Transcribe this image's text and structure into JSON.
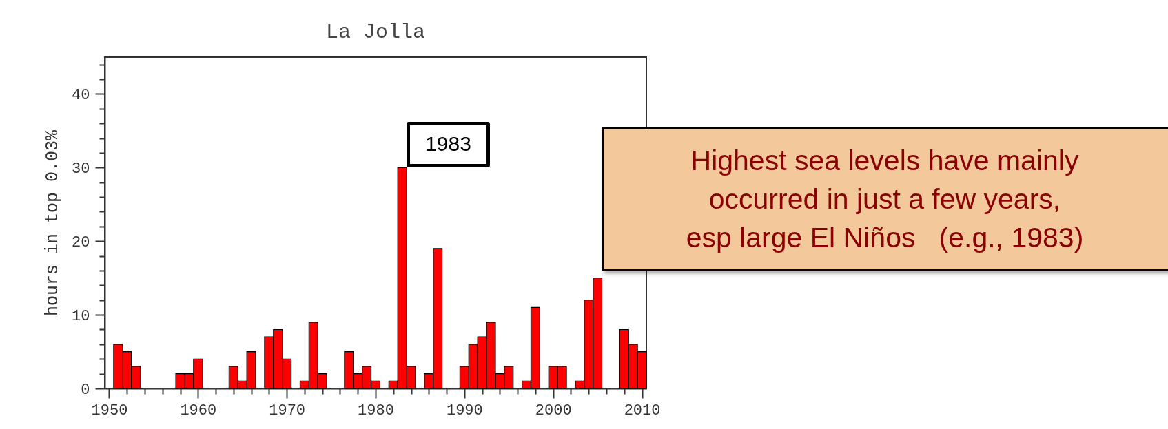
{
  "chart_data": {
    "type": "bar",
    "title": "La Jolla",
    "ylabel": "hours in top 0.03%",
    "x": [
      1951,
      1952,
      1953,
      1958,
      1959,
      1960,
      1964,
      1965,
      1966,
      1968,
      1969,
      1970,
      1972,
      1973,
      1974,
      1977,
      1978,
      1979,
      1980,
      1982,
      1983,
      1984,
      1986,
      1987,
      1990,
      1991,
      1992,
      1993,
      1994,
      1995,
      1997,
      1998,
      2000,
      2001,
      2003,
      2004,
      2005,
      2008,
      2009,
      2010
    ],
    "values": [
      6,
      5,
      3,
      2,
      2,
      4,
      3,
      1,
      5,
      7,
      8,
      4,
      1,
      9,
      2,
      5,
      2,
      3,
      1,
      1,
      30,
      3,
      2,
      19,
      3,
      6,
      7,
      9,
      2,
      3,
      1,
      11,
      3,
      3,
      1,
      12,
      15,
      8,
      6,
      5
    ],
    "color": "#ff0000",
    "xlim": [
      1949.5,
      2010.5
    ],
    "xticks": [
      1950,
      {
        "value": 1952,
        "label": null
      },
      {
        "value": 1954,
        "label": null
      },
      {
        "value": 1956,
        "label": null
      },
      {
        "value": 1958,
        "label": null
      },
      1960,
      {
        "value": 1962,
        "label": null
      },
      {
        "value": 1964,
        "label": null
      },
      {
        "value": 1966,
        "label": null
      },
      {
        "value": 1968,
        "label": null
      },
      1970,
      {
        "value": 1972,
        "label": null
      },
      {
        "value": 1974,
        "label": null
      },
      {
        "value": 1976,
        "label": null
      },
      {
        "value": 1978,
        "label": null
      },
      1980,
      {
        "value": 1982,
        "label": null
      },
      {
        "value": 1984,
        "label": null
      },
      {
        "value": 1986,
        "label": null
      },
      {
        "value": 1988,
        "label": null
      },
      1990,
      {
        "value": 1992,
        "label": null
      },
      {
        "value": 1994,
        "label": null
      },
      {
        "value": 1996,
        "label": null
      },
      {
        "value": 1998,
        "label": null
      },
      2000,
      {
        "value": 2002,
        "label": null
      },
      {
        "value": 2004,
        "label": null
      },
      {
        "value": 2006,
        "label": null
      },
      {
        "value": 2008,
        "label": null
      },
      2010
    ],
    "ylim": [
      0,
      45
    ],
    "yticks": [
      0,
      {
        "value": 2,
        "label": null
      },
      {
        "value": 4,
        "label": null
      },
      {
        "value": 6,
        "label": null
      },
      {
        "value": 8,
        "label": null
      },
      10,
      {
        "value": 12,
        "label": null
      },
      {
        "value": 14,
        "label": null
      },
      {
        "value": 16,
        "label": null
      },
      {
        "value": 18,
        "label": null
      },
      20,
      {
        "value": 22,
        "label": null
      },
      {
        "value": 24,
        "label": null
      },
      {
        "value": 26,
        "label": null
      },
      {
        "value": 28,
        "label": null
      },
      30,
      {
        "value": 32,
        "label": null
      },
      {
        "value": 34,
        "label": null
      },
      {
        "value": 36,
        "label": null
      },
      {
        "value": 38,
        "label": null
      },
      40,
      {
        "value": 42,
        "label": null
      },
      {
        "value": 44,
        "label": null
      }
    ],
    "grid": false,
    "annotations": [
      {
        "text": "1983",
        "x": 1983,
        "y": 30
      },
      "Highest sea levels have mainly\noccurred in just a few years,\nesp large El Niños   (e.g., 1983)"
    ]
  }
}
